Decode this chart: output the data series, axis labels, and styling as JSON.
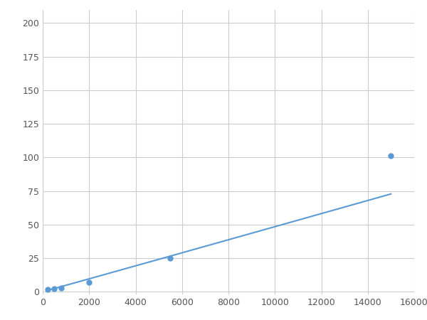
{
  "x_data": [
    200,
    500,
    800,
    2000,
    5500,
    15000
  ],
  "y_data": [
    1.5,
    2,
    3,
    7,
    25,
    101
  ],
  "line_color": "#5B9BD5",
  "marker_color": "#5B9BD5",
  "marker_size": 5,
  "line_width": 1.5,
  "xlim": [
    0,
    16000
  ],
  "ylim": [
    -2,
    210
  ],
  "xticks": [
    0,
    2000,
    4000,
    6000,
    8000,
    10000,
    12000,
    14000,
    16000
  ],
  "yticks": [
    0,
    25,
    50,
    75,
    100,
    125,
    150,
    175,
    200
  ],
  "grid_color": "#cccccc",
  "bg_color": "#ffffff",
  "figsize": [
    6.0,
    4.5
  ],
  "dpi": 100
}
